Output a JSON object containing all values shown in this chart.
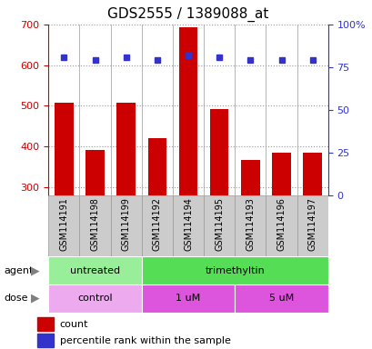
{
  "title": "GDS2555 / 1389088_at",
  "samples": [
    "GSM114191",
    "GSM114198",
    "GSM114199",
    "GSM114192",
    "GSM114194",
    "GSM114195",
    "GSM114193",
    "GSM114196",
    "GSM114197"
  ],
  "counts": [
    508,
    392,
    508,
    420,
    692,
    492,
    368,
    386,
    386
  ],
  "percentiles": [
    81,
    79,
    81,
    79,
    82,
    81,
    79,
    79,
    79
  ],
  "ymin": 280,
  "ymax": 700,
  "yticks_left": [
    300,
    400,
    500,
    600,
    700
  ],
  "yticks_right": [
    0,
    25,
    50,
    75,
    100
  ],
  "yright_min": 0,
  "yright_max": 100,
  "bar_color": "#cc0000",
  "dot_color": "#3333cc",
  "bar_bottom": 280,
  "agent_groups": [
    {
      "label": "untreated",
      "start": 0,
      "end": 3,
      "color": "#99ee99"
    },
    {
      "label": "trimethyltin",
      "start": 3,
      "end": 9,
      "color": "#55dd55"
    }
  ],
  "dose_groups": [
    {
      "label": "control",
      "start": 0,
      "end": 3,
      "color": "#eeaaee"
    },
    {
      "label": "1 uM",
      "start": 3,
      "end": 6,
      "color": "#dd55dd"
    },
    {
      "label": "5 uM",
      "start": 6,
      "end": 9,
      "color": "#dd55dd"
    }
  ],
  "legend_count_color": "#cc0000",
  "legend_dot_color": "#3333cc",
  "bar_color_left": "#cc0000",
  "ylabel_right_color": "#3333cc",
  "grid_color": "#999999",
  "title_color": "#000000",
  "title_fontsize": 11,
  "tick_fontsize": 8,
  "sample_bg_color": "#cccccc",
  "sample_border_color": "#999999"
}
